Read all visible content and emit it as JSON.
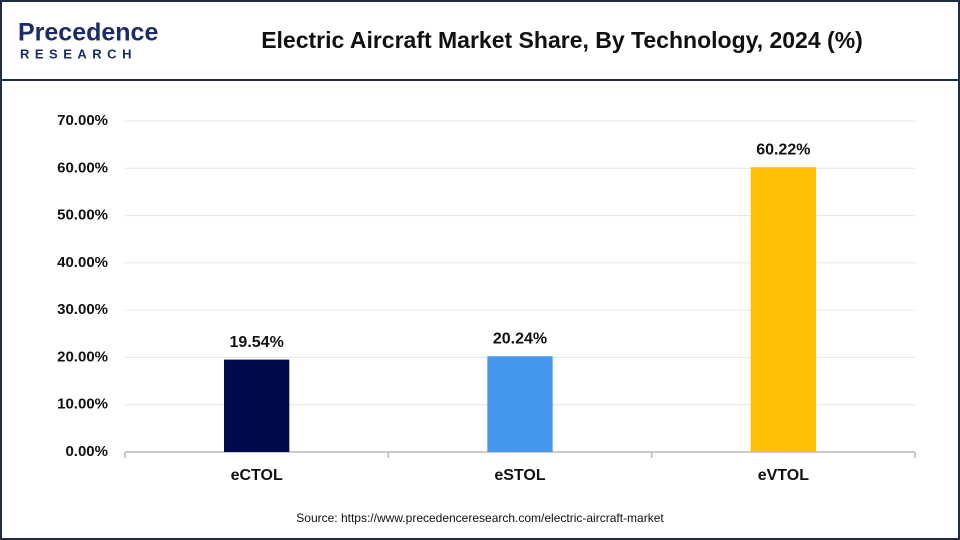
{
  "logo": {
    "name": "Precedence",
    "tagline": "RESEARCH"
  },
  "chart_data": {
    "type": "bar",
    "title": "Electric Aircraft Market Share, By Technology, 2024 (%)",
    "categories": [
      "eCTOL",
      "eSTOL",
      "eVTOL"
    ],
    "values": [
      19.54,
      20.24,
      60.22
    ],
    "value_labels": [
      "19.54%",
      "20.24%",
      "60.22%"
    ],
    "colors": [
      "#020a4e",
      "#4596ee",
      "#fec004"
    ],
    "ylim": [
      0,
      70
    ],
    "yticks": [
      {
        "value": 0,
        "label": "0.00%"
      },
      {
        "value": 10,
        "label": "10.00%"
      },
      {
        "value": 20,
        "label": "20.00%"
      },
      {
        "value": 30,
        "label": "30.00%"
      },
      {
        "value": 40,
        "label": "40.00%"
      },
      {
        "value": 50,
        "label": "50.00%"
      },
      {
        "value": 60,
        "label": "60.00%"
      },
      {
        "value": 70,
        "label": "70.00%"
      }
    ],
    "grid": true,
    "source": "Source: https://www.precedenceresearch.com/electric-aircraft-market"
  }
}
